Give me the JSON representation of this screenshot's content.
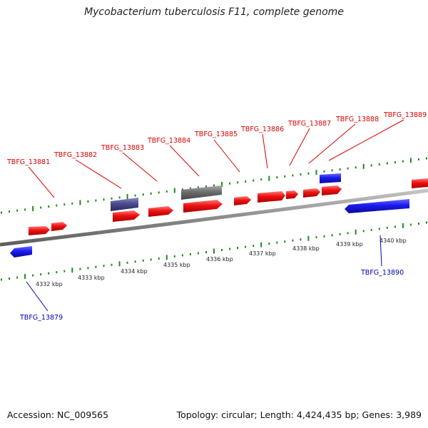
{
  "title": "Mycobacterium tuberculosis F11, complete genome",
  "footer": {
    "accession": "Accession: NC_009565",
    "topology": "Topology: circular; Length: 4,424,435 bp; Genes: 3,989"
  },
  "colors": {
    "forward_gene": "#ee1111",
    "reverse_gene": "#1a1aee",
    "forward_other": "#4b4a8c",
    "other_feature": "#6e6e6e",
    "forward_label": "#dd0000",
    "reverse_label": "#0000bb",
    "tick": "#1e8a1e",
    "backbone": "#8c8c8c"
  },
  "scale_labels": [
    "4332 kbp",
    "4333 kbp",
    "4334 kbp",
    "4335 kbp",
    "4336 kbp",
    "4337 kbp",
    "4338 kbp",
    "4339 kbp",
    "4340 kbp"
  ],
  "gene_labels": {
    "forward": [
      "TBFG_13881",
      "TBFG_13882",
      "TBFG_13883",
      "TBFG_13884",
      "TBFG_13885",
      "TBFG_13886",
      "TBFG_13887",
      "TBFG_13888",
      "TBFG_13889"
    ],
    "reverse": [
      "TBFG_13879",
      "TBFG_13890"
    ]
  }
}
